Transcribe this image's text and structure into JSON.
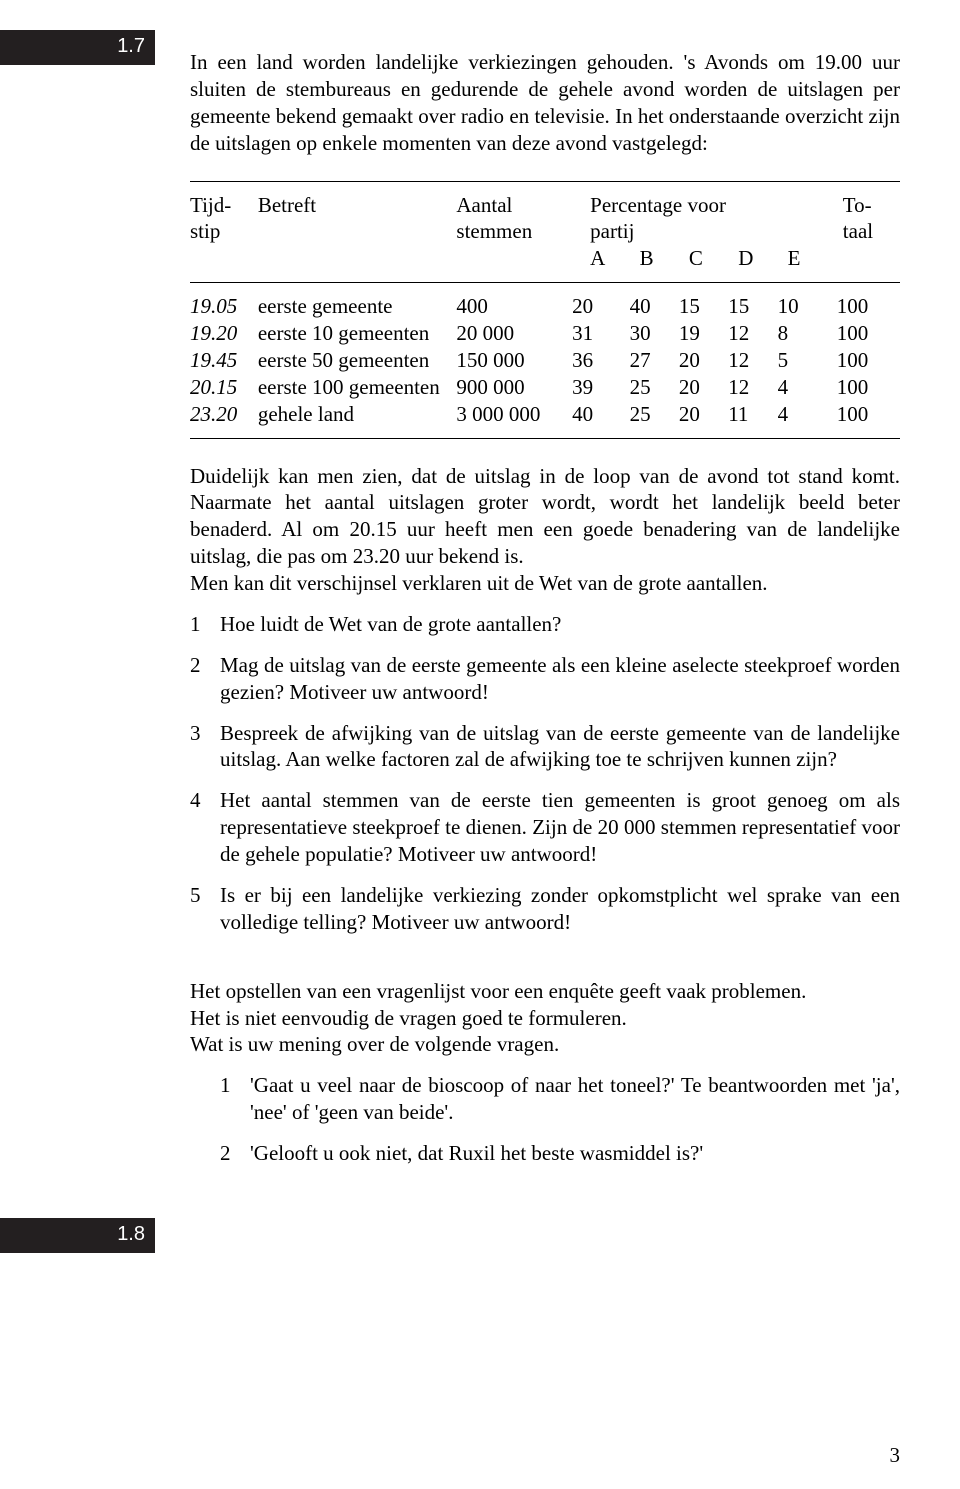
{
  "badges": {
    "b1": "1.7",
    "b2": "1.8"
  },
  "intro": "In een land worden landelijke verkiezingen gehouden. 's Avonds om 19.00 uur sluiten de stembureaus en gedurende de gehele avond worden de uitslagen per gemeente bekend gemaakt over radio en televisie. In het onderstaande overzicht zijn de uitslagen op enkele momenten van deze avond vastgelegd:",
  "table": {
    "headers": {
      "tijdstip_l1": "Tijd-",
      "tijdstip_l2": "stip",
      "betreft": "Betreft",
      "aantal_l1": "Aantal",
      "aantal_l2": "stemmen",
      "pct_l1": "Percentage voor",
      "pct_l2": "partij",
      "a": "A",
      "b": "B",
      "c": "C",
      "d": "D",
      "e": "E",
      "tot_l1": "To-",
      "tot_l2": "taal"
    },
    "rows": [
      {
        "tijd": "19.05",
        "betreft": "eerste gemeente",
        "stemmen": "400",
        "a": "20",
        "b": "40",
        "c": "15",
        "d": "15",
        "e": "10",
        "tot": "100"
      },
      {
        "tijd": "19.20",
        "betreft": "eerste 10 gemeenten",
        "stemmen": "20 000",
        "a": "31",
        "b": "30",
        "c": "19",
        "d": "12",
        "e": "8",
        "tot": "100"
      },
      {
        "tijd": "19.45",
        "betreft": "eerste 50 gemeenten",
        "stemmen": "150 000",
        "a": "36",
        "b": "27",
        "c": "20",
        "d": "12",
        "e": "5",
        "tot": "100"
      },
      {
        "tijd": "20.15",
        "betreft": "eerste 100 gemeenten",
        "stemmen": "900 000",
        "a": "39",
        "b": "25",
        "c": "20",
        "d": "12",
        "e": "4",
        "tot": "100"
      },
      {
        "tijd": "23.20",
        "betreft": "gehele land",
        "stemmen": "3 000 000",
        "a": "40",
        "b": "25",
        "c": "20",
        "d": "11",
        "e": "4",
        "tot": "100"
      }
    ]
  },
  "para2": "Duidelijk kan men zien, dat de uitslag in de loop van de avond tot stand komt. Naarmate het aantal uitslagen groter wordt, wordt het landelijk beeld beter benaderd. Al om 20.15 uur heeft men een goede benadering van de landelijke uitslag, die pas om 23.20 uur bekend is.",
  "para2b": "Men kan dit verschijnsel verklaren uit de Wet van de grote aantallen.",
  "questions": [
    {
      "n": "1",
      "t": "Hoe luidt de Wet van de grote aantallen?"
    },
    {
      "n": "2",
      "t": "Mag de uitslag van de eerste gemeente als een kleine aselecte steekproef worden gezien? Motiveer uw antwoord!"
    },
    {
      "n": "3",
      "t": "Bespreek de afwijking van de uitslag van de eerste gemeente van de landelijke uitslag. Aan welke factoren zal de afwijking toe te schrijven kunnen zijn?"
    },
    {
      "n": "4",
      "t": "Het aantal stemmen van de eerste tien gemeenten is groot genoeg om als representatieve steekproef te dienen. Zijn de 20 000 stemmen representatief voor de gehele populatie? Motiveer uw antwoord!"
    },
    {
      "n": "5",
      "t": "Is er bij een landelijke verkiezing zonder opkomstplicht wel sprake van een volledige telling? Motiveer uw antwoord!"
    }
  ],
  "section2": {
    "intro_l1": "Het opstellen van een vragenlijst voor een enquête geeft vaak problemen.",
    "intro_l2": "Het is niet eenvoudig de vragen goed te formuleren.",
    "intro_l3": "Wat is uw mening over de volgende vragen.",
    "subq": [
      {
        "n": "1",
        "t": "'Gaat u veel naar de bioscoop of naar het toneel?' Te beantwoorden met 'ja', 'nee' of 'geen van beide'."
      },
      {
        "n": "2",
        "t": "'Gelooft u ook niet, dat Ruxil het beste wasmiddel is?'"
      }
    ]
  },
  "page_number": "3"
}
